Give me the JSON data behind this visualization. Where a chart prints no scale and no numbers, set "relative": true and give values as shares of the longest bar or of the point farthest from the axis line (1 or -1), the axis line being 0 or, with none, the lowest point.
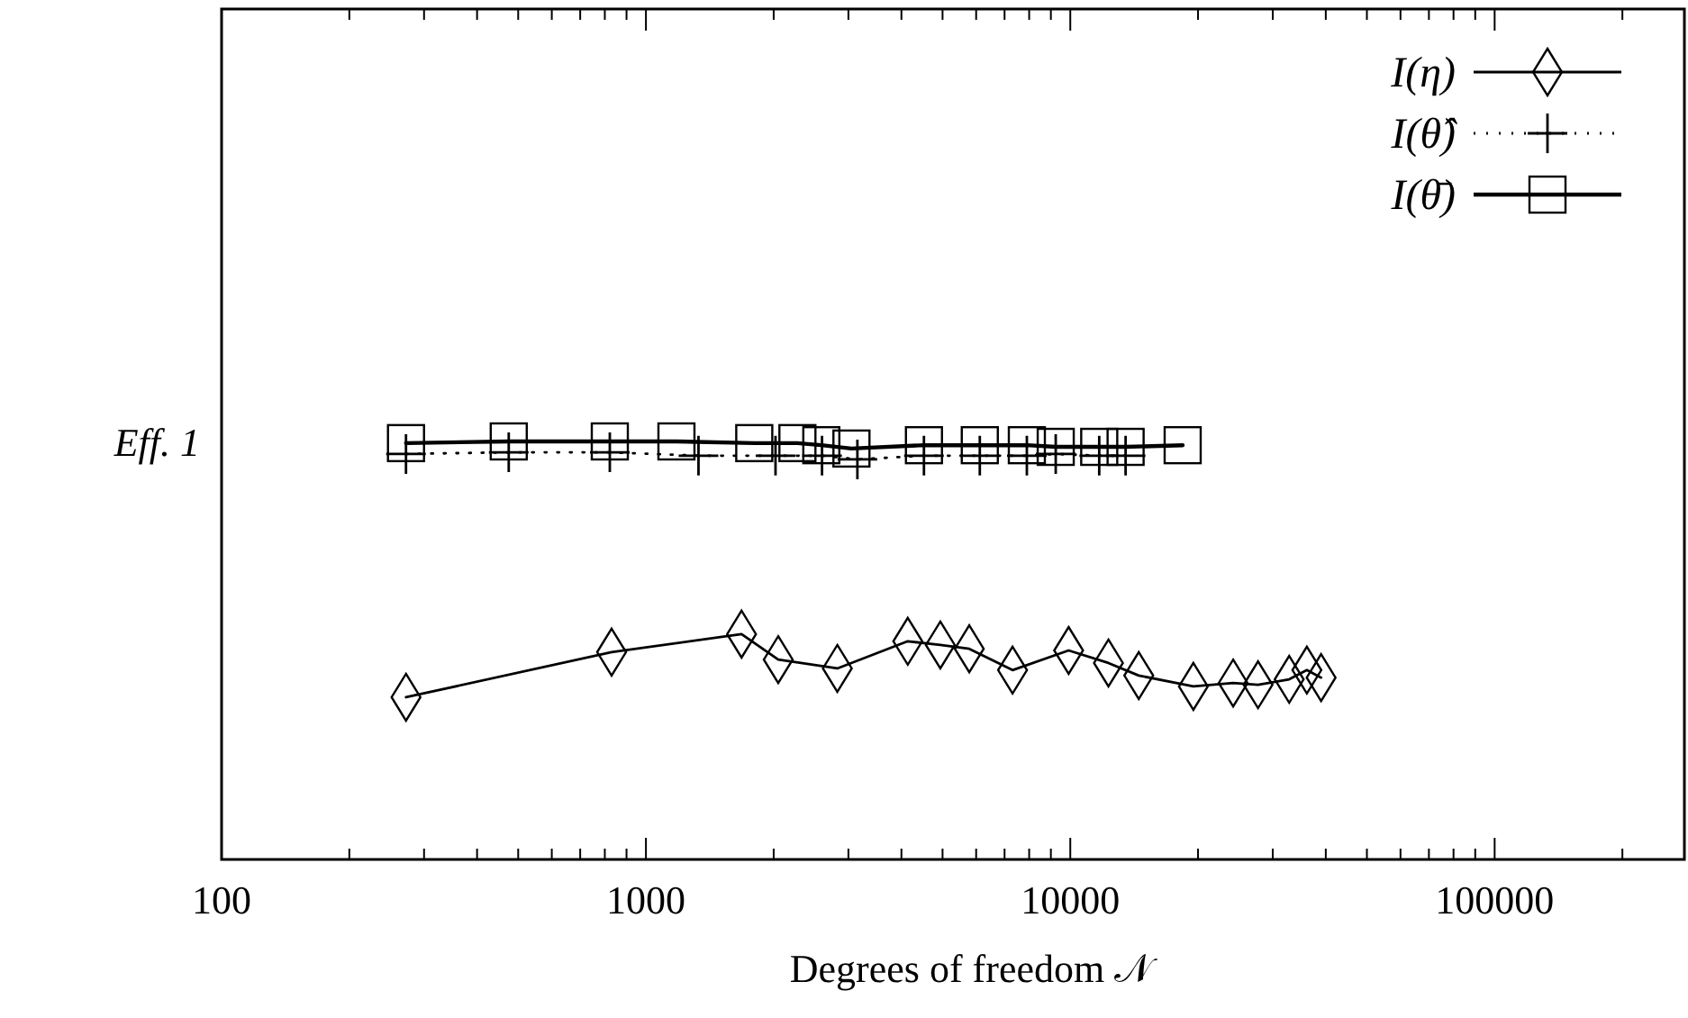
{
  "chart_data": {
    "type": "line",
    "relative": true,
    "log": "x",
    "xlabel": "Degrees of freedom 𝒩",
    "ylabel": "Eff. 1",
    "xlim": [
      100,
      280000
    ],
    "xticks": [
      100,
      {
        "value": 200,
        "label": null
      },
      {
        "value": 300,
        "label": null
      },
      {
        "value": 400,
        "label": null
      },
      {
        "value": 500,
        "label": null
      },
      {
        "value": 600,
        "label": null
      },
      {
        "value": 700,
        "label": null
      },
      {
        "value": 800,
        "label": null
      },
      {
        "value": 900,
        "label": null
      },
      1000,
      {
        "value": 2000,
        "label": null
      },
      {
        "value": 3000,
        "label": null
      },
      {
        "value": 4000,
        "label": null
      },
      {
        "value": 5000,
        "label": null
      },
      {
        "value": 6000,
        "label": null
      },
      {
        "value": 7000,
        "label": null
      },
      {
        "value": 8000,
        "label": null
      },
      {
        "value": 9000,
        "label": null
      },
      10000,
      {
        "value": 20000,
        "label": null
      },
      {
        "value": 30000,
        "label": null
      },
      {
        "value": 40000,
        "label": null
      },
      {
        "value": 50000,
        "label": null
      },
      {
        "value": 60000,
        "label": null
      },
      {
        "value": 70000,
        "label": null
      },
      {
        "value": 80000,
        "label": null
      },
      {
        "value": 90000,
        "label": null
      },
      100000,
      {
        "value": 200000,
        "label": null
      }
    ],
    "legend": "top right",
    "grid": false,
    "series": [
      {
        "name": "I(η)",
        "color": "#000000",
        "marker": "diamond",
        "line_style": "solid",
        "x": [
          272,
          830,
          1680,
          2050,
          2825,
          4140,
          4940,
          5780,
          7310,
          9910,
          12300,
          14500,
          19500,
          24200,
          27700,
          32800,
          36100,
          39000
        ],
        "values": [
          0.388,
          0.496,
          0.539,
          0.478,
          0.457,
          0.522,
          0.513,
          0.504,
          0.453,
          0.5,
          0.47,
          0.44,
          0.414,
          0.422,
          0.418,
          0.431,
          0.453,
          0.435
        ]
      },
      {
        "name": "I(θ̂)",
        "color": "#000000",
        "marker": "cross",
        "line_style": "dotted",
        "x": [
          272,
          475,
          822,
          1330,
          2020,
          2600,
          3150,
          4520,
          6120,
          7900,
          9240,
          11700,
          13500
        ],
        "values": [
          0.97,
          0.974,
          0.974,
          0.966,
          0.966,
          0.966,
          0.957,
          0.966,
          0.966,
          0.966,
          0.97,
          0.966,
          0.966
        ]
      },
      {
        "name": "I(θ̄)",
        "color": "#000000",
        "marker": "square",
        "line_style": "solid",
        "x": [
          272,
          475,
          822,
          1180,
          1800,
          2275,
          2590,
          3050,
          4520,
          6120,
          7900,
          9240,
          11700,
          13500,
          18400
        ],
        "values": [
          0.996,
          1.0,
          1.0,
          1.0,
          0.996,
          0.996,
          0.991,
          0.983,
          0.991,
          0.991,
          0.991,
          0.987,
          0.987,
          0.987,
          0.991
        ]
      }
    ]
  }
}
